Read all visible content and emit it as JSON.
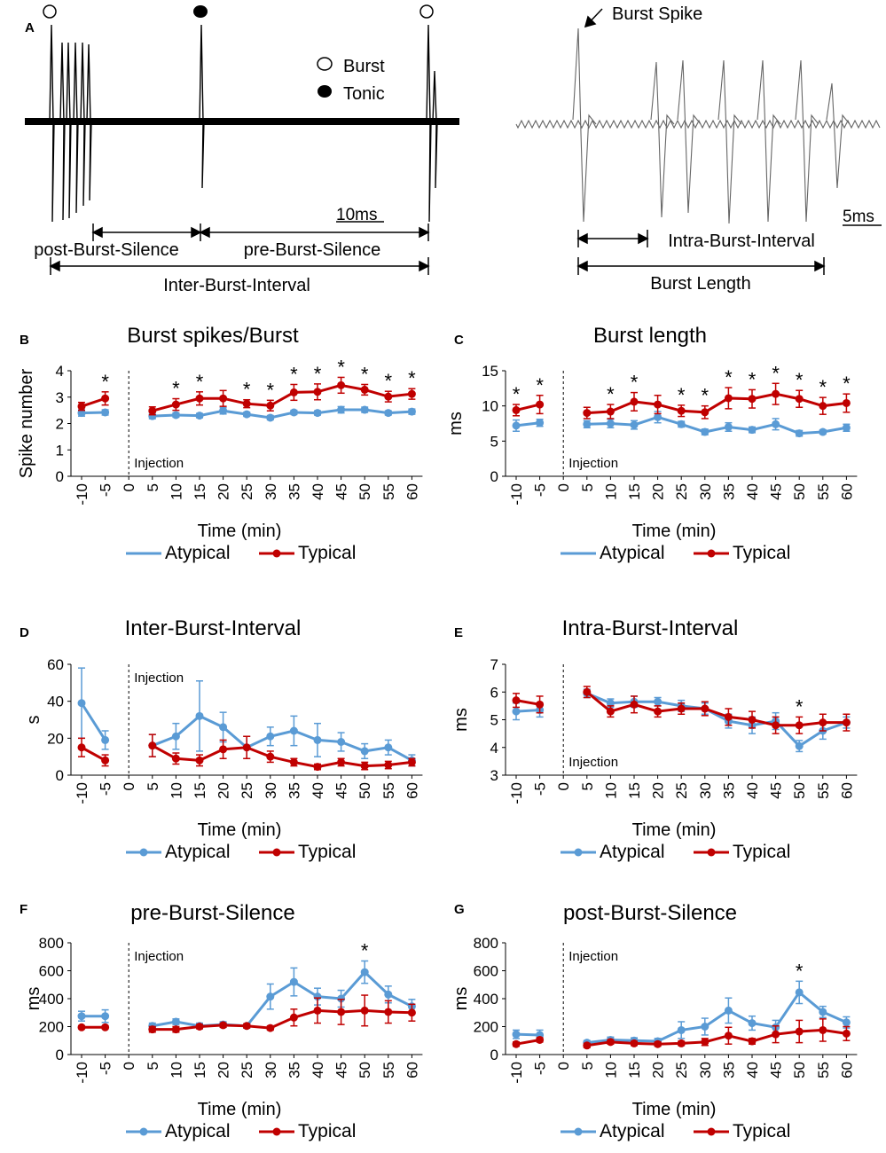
{
  "colors": {
    "atypical": "#5a9bd5",
    "typical": "#c00000",
    "axis": "#000000"
  },
  "panel_a": {
    "letter": "A",
    "legend": {
      "burst": "Burst",
      "tonic": "Tonic"
    },
    "scale_left": "10ms",
    "scale_right": "5ms",
    "labels": {
      "post_silence": "post-Burst-Silence",
      "pre_silence": "pre-Burst-Silence",
      "inter_burst": "Inter-Burst-Interval",
      "burst_spike": "Burst Spike",
      "intra_burst": "Intra-Burst-Interval",
      "burst_length": "Burst Length"
    }
  },
  "shared": {
    "xlabel": "Time (min)",
    "injection_label": "Injection",
    "legend": {
      "atypical": "Atypical",
      "typical": "Typical"
    },
    "sig_mark": "*"
  },
  "chart_data": [
    {
      "id": "B",
      "type": "line",
      "title": "Burst spikes/Burst",
      "ylabel": "Spike number",
      "ylim": [
        0,
        4
      ],
      "yticks": [
        0,
        1,
        2,
        3,
        4
      ],
      "x": [
        -10,
        -5,
        0,
        5,
        10,
        15,
        20,
        25,
        30,
        35,
        40,
        45,
        50,
        55,
        60
      ],
      "series": [
        {
          "name": "Atypical",
          "values": [
            2.4,
            2.42,
            null,
            2.28,
            2.32,
            2.3,
            2.48,
            2.35,
            2.22,
            2.42,
            2.4,
            2.52,
            2.52,
            2.4,
            2.45
          ],
          "err": [
            0.12,
            0.1,
            null,
            0.1,
            0.08,
            0.08,
            0.12,
            0.08,
            0.08,
            0.08,
            0.08,
            0.12,
            0.1,
            0.08,
            0.1
          ]
        },
        {
          "name": "Typical",
          "values": [
            2.65,
            2.95,
            null,
            2.48,
            2.72,
            2.95,
            2.95,
            2.75,
            2.68,
            3.18,
            3.2,
            3.45,
            3.28,
            3.02,
            3.12
          ],
          "err": [
            0.15,
            0.25,
            null,
            0.15,
            0.22,
            0.25,
            0.3,
            0.15,
            0.2,
            0.3,
            0.3,
            0.3,
            0.2,
            0.2,
            0.2
          ]
        }
      ],
      "significant_x": [
        -5,
        10,
        15,
        25,
        30,
        35,
        40,
        45,
        50,
        55,
        60
      ],
      "legend_style": "line"
    },
    {
      "id": "C",
      "type": "line",
      "title": "Burst length",
      "ylabel": "ms",
      "ylim": [
        0,
        15
      ],
      "yticks": [
        0,
        5,
        10,
        15
      ],
      "x": [
        -10,
        -5,
        0,
        5,
        10,
        15,
        20,
        25,
        30,
        35,
        40,
        45,
        50,
        55,
        60
      ],
      "series": [
        {
          "name": "Atypical",
          "values": [
            7.2,
            7.6,
            null,
            7.4,
            7.5,
            7.3,
            8.4,
            7.4,
            6.3,
            7.0,
            6.6,
            7.4,
            6.1,
            6.3,
            6.9
          ],
          "err": [
            0.8,
            0.5,
            null,
            0.5,
            0.6,
            0.6,
            0.8,
            0.4,
            0.4,
            0.6,
            0.4,
            0.8,
            0.4,
            0.3,
            0.5
          ]
        },
        {
          "name": "Typical",
          "values": [
            9.4,
            10.2,
            null,
            9.0,
            9.2,
            10.6,
            10.2,
            9.3,
            9.1,
            11.1,
            11.0,
            11.7,
            11.0,
            10.0,
            10.4
          ],
          "err": [
            0.8,
            1.3,
            null,
            0.8,
            1.0,
            1.3,
            1.3,
            0.8,
            0.9,
            1.5,
            1.3,
            1.5,
            1.2,
            1.2,
            1.3
          ]
        }
      ],
      "significant_x": [
        -10,
        -5,
        10,
        15,
        25,
        30,
        35,
        40,
        45,
        50,
        55,
        60
      ],
      "legend_style": "line"
    },
    {
      "id": "D",
      "type": "line",
      "title": "Inter-Burst-Interval",
      "ylabel": "s",
      "ylim": [
        0,
        60
      ],
      "yticks": [
        0,
        20,
        40,
        60
      ],
      "x": [
        -10,
        -5,
        0,
        5,
        10,
        15,
        20,
        25,
        30,
        35,
        40,
        45,
        50,
        55,
        60
      ],
      "series": [
        {
          "name": "Atypical",
          "values": [
            39,
            19,
            null,
            16,
            21,
            32,
            26,
            15,
            21,
            24,
            19,
            18,
            13,
            15,
            8
          ],
          "err": [
            19,
            5,
            null,
            6,
            7,
            19,
            8,
            6,
            5,
            8,
            9,
            5,
            4,
            4,
            3
          ]
        },
        {
          "name": "Typical",
          "values": [
            15,
            8,
            null,
            16,
            9,
            8,
            14,
            15,
            10,
            7,
            4.5,
            7,
            5,
            5.5,
            7
          ],
          "err": [
            5,
            3,
            null,
            6,
            3,
            3,
            5,
            6,
            3,
            2,
            1.5,
            2,
            2,
            2,
            2
          ]
        }
      ],
      "significant_x": [],
      "legend_style": "marker"
    },
    {
      "id": "E",
      "type": "line",
      "title": "Intra-Burst-Interval",
      "ylabel": "ms",
      "ylim": [
        3,
        7
      ],
      "yticks": [
        3,
        4,
        5,
        6,
        7
      ],
      "x": [
        -10,
        -5,
        0,
        5,
        10,
        15,
        20,
        25,
        30,
        35,
        40,
        45,
        50,
        55,
        60
      ],
      "series": [
        {
          "name": "Atypical",
          "values": [
            5.3,
            5.35,
            null,
            5.95,
            5.6,
            5.65,
            5.65,
            5.5,
            5.4,
            4.95,
            4.8,
            4.95,
            4.05,
            4.6,
            4.9
          ],
          "err": [
            0.3,
            0.25,
            null,
            0.15,
            0.15,
            0.2,
            0.15,
            0.2,
            0.2,
            0.25,
            0.3,
            0.3,
            0.2,
            0.3,
            0.2
          ]
        },
        {
          "name": "Typical",
          "values": [
            5.7,
            5.55,
            null,
            6.0,
            5.3,
            5.55,
            5.3,
            5.4,
            5.4,
            5.1,
            5.0,
            4.8,
            4.8,
            4.9,
            4.9
          ],
          "err": [
            0.25,
            0.3,
            null,
            0.2,
            0.2,
            0.3,
            0.2,
            0.2,
            0.25,
            0.3,
            0.3,
            0.3,
            0.3,
            0.3,
            0.3
          ]
        }
      ],
      "significant_x": [
        50
      ],
      "legend_style": "marker"
    },
    {
      "id": "F",
      "type": "line",
      "title": "pre-Burst-Silence",
      "ylabel": "ms",
      "ylim": [
        0,
        800
      ],
      "yticks": [
        0,
        200,
        400,
        600,
        800
      ],
      "x": [
        -10,
        -5,
        0,
        5,
        10,
        15,
        20,
        25,
        30,
        35,
        40,
        45,
        50,
        55,
        60
      ],
      "series": [
        {
          "name": "Atypical",
          "values": [
            275,
            275,
            null,
            205,
            235,
            205,
            215,
            205,
            415,
            520,
            415,
            400,
            590,
            430,
            345
          ],
          "err": [
            35,
            45,
            null,
            20,
            20,
            20,
            20,
            15,
            90,
            100,
            60,
            60,
            80,
            60,
            50
          ]
        },
        {
          "name": "Typical",
          "values": [
            195,
            195,
            null,
            180,
            180,
            200,
            210,
            205,
            190,
            265,
            315,
            305,
            315,
            305,
            300
          ],
          "err": [
            10,
            10,
            null,
            20,
            20,
            15,
            15,
            15,
            15,
            60,
            90,
            90,
            110,
            80,
            60
          ]
        }
      ],
      "significant_x": [
        50
      ],
      "legend_style": "marker"
    },
    {
      "id": "G",
      "type": "line",
      "title": "post-Burst-Silence",
      "ylabel": "ms",
      "ylim": [
        0,
        800
      ],
      "yticks": [
        0,
        200,
        400,
        600,
        800
      ],
      "x": [
        -10,
        -5,
        0,
        5,
        10,
        15,
        20,
        25,
        30,
        35,
        40,
        45,
        50,
        55,
        60
      ],
      "series": [
        {
          "name": "Atypical",
          "values": [
            145,
            140,
            null,
            85,
            105,
            100,
            95,
            175,
            200,
            315,
            225,
            195,
            445,
            305,
            230
          ],
          "err": [
            30,
            35,
            null,
            15,
            20,
            20,
            20,
            60,
            60,
            90,
            50,
            50,
            80,
            40,
            40
          ]
        },
        {
          "name": "Typical",
          "values": [
            75,
            105,
            null,
            65,
            90,
            80,
            75,
            80,
            90,
            135,
            95,
            145,
            165,
            175,
            150
          ],
          "err": [
            15,
            15,
            null,
            15,
            15,
            15,
            15,
            15,
            25,
            60,
            20,
            60,
            80,
            80,
            50
          ]
        }
      ],
      "significant_x": [
        50
      ],
      "legend_style": "marker"
    }
  ]
}
